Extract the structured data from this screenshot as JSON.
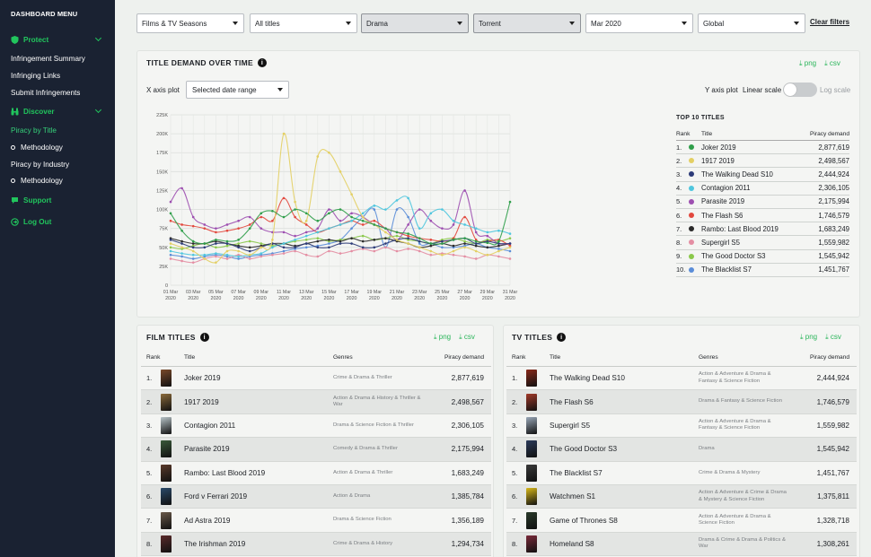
{
  "sidebar": {
    "menu_title": "DASHBOARD MENU",
    "protect_label": "Protect",
    "protect_items": [
      "Infringement Summary",
      "Infringing Links",
      "Submit Infringements"
    ],
    "discover_label": "Discover",
    "piracy_by_title": "Piracy by Title",
    "methodology": "Methodology",
    "piracy_by_industry": "Piracy by Industry",
    "methodology2": "Methodology",
    "support_label": "Support",
    "logout_label": "Log Out",
    "accent_color": "#21c55d"
  },
  "filters": {
    "content_type": "Films & TV Seasons",
    "titles": "All titles",
    "genre": "Drama",
    "source": "Torrent",
    "period": "Mar 2020",
    "region": "Global",
    "clear_label": "Clear filters"
  },
  "demand_panel": {
    "title": "TITLE DEMAND OVER TIME",
    "png": "⤓ png",
    "csv": "⤓ csv",
    "x_axis_label": "X axis plot",
    "x_axis_value": "Selected date range",
    "y_axis_label": "Y axis plot",
    "linear_label": "Linear scale",
    "log_label": "Log scale"
  },
  "chart_data": {
    "type": "line",
    "x": [
      "01 Mar 2020",
      "02 Mar 2020",
      "03 Mar 2020",
      "04 Mar 2020",
      "05 Mar 2020",
      "06 Mar 2020",
      "07 Mar 2020",
      "08 Mar 2020",
      "09 Mar 2020",
      "10 Mar 2020",
      "11 Mar 2020",
      "12 Mar 2020",
      "13 Mar 2020",
      "14 Mar 2020",
      "15 Mar 2020",
      "16 Mar 2020",
      "17 Mar 2020",
      "18 Mar 2020",
      "19 Mar 2020",
      "20 Mar 2020",
      "21 Mar 2020",
      "22 Mar 2020",
      "23 Mar 2020",
      "24 Mar 2020",
      "25 Mar 2020",
      "26 Mar 2020",
      "27 Mar 2020",
      "28 Mar 2020",
      "29 Mar 2020",
      "30 Mar 2020",
      "31 Mar 2020"
    ],
    "x_tick_labels": [
      [
        "01 Mar",
        "2020"
      ],
      [
        "03 Mar",
        "2020"
      ],
      [
        "05 Mar",
        "2020"
      ],
      [
        "07 Mar",
        "2020"
      ],
      [
        "09 Mar",
        "2020"
      ],
      [
        "11 Mar",
        "2020"
      ],
      [
        "13 Mar",
        "2020"
      ],
      [
        "15 Mar",
        "2020"
      ],
      [
        "17 Mar",
        "2020"
      ],
      [
        "19 Mar",
        "2020"
      ],
      [
        "21 Mar",
        "2020"
      ],
      [
        "23 Mar",
        "2020"
      ],
      [
        "25 Mar",
        "2020"
      ],
      [
        "27 Mar",
        "2020"
      ],
      [
        "29 Mar",
        "2020"
      ],
      [
        "31 Mar",
        "2020"
      ]
    ],
    "y_ticks": [
      "0",
      "25K",
      "50K",
      "75K",
      "100K",
      "125K",
      "150K",
      "175K",
      "200K",
      "225K"
    ],
    "ylim": [
      0,
      225000
    ],
    "grid": true,
    "series": [
      {
        "name": "Joker 2019",
        "color": "#2f9e4a",
        "values": [
          95000,
          72000,
          58000,
          55000,
          60000,
          58000,
          60000,
          75000,
          95000,
          98000,
          90000,
          100000,
          95000,
          85000,
          95000,
          100000,
          90000,
          85000,
          80000,
          75000,
          70000,
          68000,
          62000,
          55000,
          55000,
          60000,
          62000,
          58000,
          56000,
          58000,
          110000
        ]
      },
      {
        "name": "1917 2019",
        "color": "#e3cf63",
        "values": [
          55000,
          50000,
          45000,
          35000,
          30000,
          45000,
          45000,
          40000,
          50000,
          60000,
          200000,
          110000,
          85000,
          170000,
          175000,
          150000,
          120000,
          90000,
          80000,
          70000,
          60000,
          55000,
          50000,
          45000,
          40000,
          45000,
          50000,
          45000,
          40000,
          45000,
          50000
        ]
      },
      {
        "name": "The Walking Dead S10",
        "color": "#2c3b78",
        "values": [
          60000,
          55000,
          50000,
          50000,
          55000,
          55000,
          50000,
          45000,
          50000,
          55000,
          50000,
          50000,
          55000,
          50000,
          50000,
          55000,
          55000,
          50000,
          50000,
          55000,
          60000,
          62000,
          58000,
          55000,
          58000,
          60000,
          62000,
          55000,
          58000,
          55000,
          55000
        ]
      },
      {
        "name": "Contagion 2011",
        "color": "#4fc6de",
        "values": [
          45000,
          42000,
          40000,
          40000,
          42000,
          40000,
          38000,
          40000,
          42000,
          50000,
          55000,
          60000,
          65000,
          70000,
          75000,
          80000,
          85000,
          95000,
          105000,
          100000,
          112000,
          115000,
          75000,
          95000,
          100000,
          85000,
          80000,
          75000,
          70000,
          72000,
          68000
        ]
      },
      {
        "name": "Parasite 2019",
        "color": "#9d4fb0",
        "values": [
          110000,
          128000,
          90000,
          80000,
          75000,
          80000,
          85000,
          90000,
          75000,
          70000,
          70000,
          65000,
          70000,
          75000,
          100000,
          85000,
          95000,
          90000,
          80000,
          75000,
          60000,
          80000,
          100000,
          85000,
          75000,
          80000,
          125000,
          70000,
          65000,
          55000,
          55000
        ]
      },
      {
        "name": "The Flash S6",
        "color": "#e2483d",
        "values": [
          85000,
          80000,
          78000,
          75000,
          70000,
          72000,
          75000,
          80000,
          90000,
          85000,
          115000,
          90000,
          80000,
          70000,
          75000,
          80000,
          85000,
          80000,
          85000,
          75000,
          70000,
          65000,
          62000,
          60000,
          58000,
          62000,
          90000,
          60000,
          58000,
          60000,
          52000
        ]
      },
      {
        "name": "Rambo: Last Blood 2019",
        "color": "#2a2a2a",
        "values": [
          62000,
          58000,
          55000,
          55000,
          58000,
          55000,
          52000,
          50000,
          52000,
          55000,
          55000,
          52000,
          55000,
          58000,
          60000,
          58000,
          62000,
          58000,
          60000,
          62000,
          58000,
          55000,
          50000,
          52000,
          55000,
          52000,
          55000,
          52000,
          50000,
          52000,
          55000
        ]
      },
      {
        "name": "Supergirl S5",
        "color": "#e48ea3",
        "values": [
          35000,
          32000,
          30000,
          35000,
          38000,
          35000,
          40000,
          35000,
          38000,
          40000,
          42000,
          45000,
          40000,
          38000,
          45000,
          42000,
          45000,
          48000,
          45000,
          50000,
          45000,
          48000,
          45000,
          40000,
          42000,
          40000,
          38000,
          35000,
          40000,
          38000,
          35000
        ]
      },
      {
        "name": "The Good Doctor S3",
        "color": "#8ac84a",
        "values": [
          50000,
          48000,
          52000,
          55000,
          50000,
          52000,
          55000,
          58000,
          55000,
          52000,
          55000,
          58000,
          60000,
          62000,
          58000,
          60000,
          62000,
          65000,
          60000,
          62000,
          65000,
          60000,
          58000,
          55000,
          60000,
          62000,
          58000,
          55000,
          60000,
          58000,
          62000
        ]
      },
      {
        "name": "The Blacklist S7",
        "color": "#5a8dd8",
        "values": [
          40000,
          38000,
          35000,
          38000,
          40000,
          38000,
          35000,
          38000,
          40000,
          42000,
          45000,
          48000,
          50000,
          52000,
          55000,
          60000,
          75000,
          90000,
          100000,
          50000,
          100000,
          90000,
          55000,
          55000,
          50000,
          50000,
          52000,
          55000,
          50000,
          48000,
          45000
        ]
      }
    ]
  },
  "top10": {
    "title": "TOP 10 TITLES",
    "col_rank": "Rank",
    "col_title": "Title",
    "col_demand": "Piracy demand",
    "rows": [
      {
        "rank": "1.",
        "title": "Joker 2019",
        "value": "2,877,619",
        "color": "#2f9e4a"
      },
      {
        "rank": "2.",
        "title": "1917 2019",
        "value": "2,498,567",
        "color": "#e3cf63"
      },
      {
        "rank": "3.",
        "title": "The Walking Dead S10",
        "value": "2,444,924",
        "color": "#2c3b78"
      },
      {
        "rank": "4.",
        "title": "Contagion 2011",
        "value": "2,306,105",
        "color": "#4fc6de"
      },
      {
        "rank": "5.",
        "title": "Parasite 2019",
        "value": "2,175,994",
        "color": "#9d4fb0"
      },
      {
        "rank": "6.",
        "title": "The Flash S6",
        "value": "1,746,579",
        "color": "#e2483d"
      },
      {
        "rank": "7.",
        "title": "Rambo: Last Blood 2019",
        "value": "1,683,249",
        "color": "#2a2a2a"
      },
      {
        "rank": "8.",
        "title": "Supergirl S5",
        "value": "1,559,982",
        "color": "#e48ea3"
      },
      {
        "rank": "9.",
        "title": "The Good Doctor S3",
        "value": "1,545,942",
        "color": "#8ac84a"
      },
      {
        "rank": "10.",
        "title": "The Blacklist S7",
        "value": "1,451,767",
        "color": "#5a8dd8"
      }
    ]
  },
  "film_titles": {
    "title": "FILM TITLES",
    "png": "⤓ png",
    "csv": "⤓ csv",
    "col_rank": "Rank",
    "col_title": "Title",
    "col_genres": "Genres",
    "col_demand": "Piracy demand",
    "rows": [
      {
        "rank": "1.",
        "title": "Joker 2019",
        "genres": "Crime & Drama & Thriller",
        "value": "2,877,619",
        "poster": "#7a4a2a"
      },
      {
        "rank": "2.",
        "title": "1917 2019",
        "genres": "Action & Drama & History & Thriller & War",
        "value": "2,498,567",
        "poster": "#8a6a3a"
      },
      {
        "rank": "3.",
        "title": "Contagion 2011",
        "genres": "Drama & Science Fiction & Thriller",
        "value": "2,306,105",
        "poster": "#b8c4c8"
      },
      {
        "rank": "4.",
        "title": "Parasite 2019",
        "genres": "Comedy & Drama & Thriller",
        "value": "2,175,994",
        "poster": "#3a5a3a"
      },
      {
        "rank": "5.",
        "title": "Rambo: Last Blood 2019",
        "genres": "Action & Drama & Thriller",
        "value": "1,683,249",
        "poster": "#5a3a2a"
      },
      {
        "rank": "6.",
        "title": "Ford v Ferrari 2019",
        "genres": "Action & Drama",
        "value": "1,385,784",
        "poster": "#2a4a6a"
      },
      {
        "rank": "7.",
        "title": "Ad Astra 2019",
        "genres": "Drama & Science Fiction",
        "value": "1,356,189",
        "poster": "#6a5a4a"
      },
      {
        "rank": "8.",
        "title": "The Irishman 2019",
        "genres": "Crime & Drama & History",
        "value": "1,294,734",
        "poster": "#5a2a2a"
      }
    ]
  },
  "tv_titles": {
    "title": "TV TITLES",
    "png": "⤓ png",
    "csv": "⤓ csv",
    "col_rank": "Rank",
    "col_title": "Title",
    "col_genres": "Genres",
    "col_demand": "Piracy demand",
    "rows": [
      {
        "rank": "1.",
        "title": "The Walking Dead S10",
        "genres": "Action & Adventure & Drama & Fantasy & Science Fiction",
        "value": "2,444,924",
        "poster": "#8a2a1a"
      },
      {
        "rank": "2.",
        "title": "The Flash S6",
        "genres": "Drama & Fantasy & Science Fiction",
        "value": "1,746,579",
        "poster": "#a23a2a"
      },
      {
        "rank": "3.",
        "title": "Supergirl S5",
        "genres": "Action & Adventure & Drama & Fantasy & Science Fiction",
        "value": "1,559,982",
        "poster": "#9aa8b8"
      },
      {
        "rank": "4.",
        "title": "The Good Doctor S3",
        "genres": "Drama",
        "value": "1,545,942",
        "poster": "#2a3a5a"
      },
      {
        "rank": "5.",
        "title": "The Blacklist S7",
        "genres": "Crime & Drama & Mystery",
        "value": "1,451,767",
        "poster": "#3a3a3a"
      },
      {
        "rank": "6.",
        "title": "Watchmen S1",
        "genres": "Action & Adventure & Crime & Drama & Mystery & Science Fiction",
        "value": "1,375,811",
        "poster": "#d8b81a"
      },
      {
        "rank": "7.",
        "title": "Game of Thrones S8",
        "genres": "Action & Adventure & Drama & Science Fiction",
        "value": "1,328,718",
        "poster": "#2a3a2a"
      },
      {
        "rank": "8.",
        "title": "Homeland S8",
        "genres": "Drama & Crime & Drama & Politics & War",
        "value": "1,308,261",
        "poster": "#7a2a3a"
      }
    ]
  }
}
